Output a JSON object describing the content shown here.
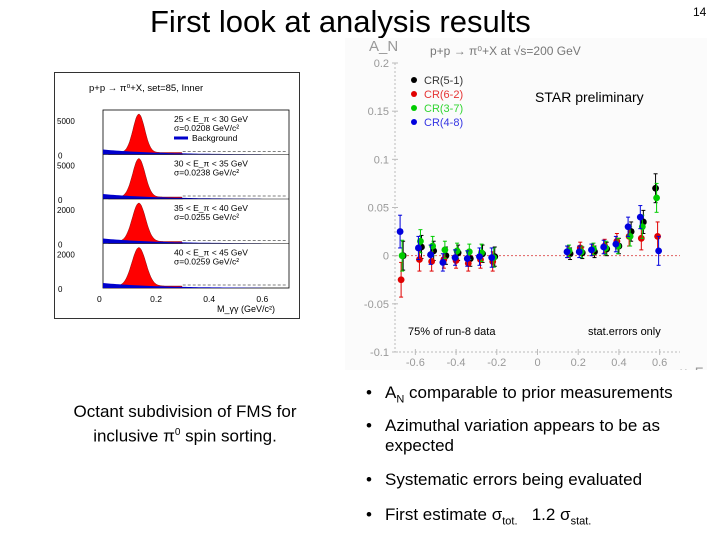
{
  "page": {
    "title": "First look at analysis results",
    "page_number": "14",
    "caption_line1": "Octant subdivision of FMS for",
    "caption_line2_pre": "inclusive ",
    "caption_pi": "π",
    "caption_pi_sup": "0",
    "caption_line2_post": " spin sorting.",
    "bullets": [
      {
        "pre": "A",
        "sub": "N",
        "post": " comparable to prior measurements"
      },
      {
        "text": "Azimuthal variation appears to be as expected"
      },
      {
        "text": "Systematic errors being evaluated"
      },
      {
        "pre": "First estimate σ",
        "sub": "tot.",
        "mid": "   1.2 σ",
        "sub2": "stat."
      }
    ]
  },
  "chart_data": [
    {
      "type": "histogram",
      "title": "p+p → π⁰+X, set=85, Inner",
      "xlabel": "M_γγ (GeV/c²)",
      "xticks": [
        "0",
        "0.2",
        "0.4",
        "0.6"
      ],
      "xlim": [
        0,
        0.7
      ],
      "legend": [
        "Background"
      ],
      "panels": [
        {
          "ytick": "5000",
          "range": "25 < E_π < 30 GeV",
          "sigma": "σ=0.0208 GeV/c²",
          "peak": 0.135
        },
        {
          "ytick": "5000",
          "range": "30 < E_π < 35 GeV",
          "sigma": "σ=0.0238 GeV/c²",
          "peak": 0.135
        },
        {
          "ytick": "2000",
          "range": "35 < E_π < 40 GeV",
          "sigma": "σ=0.0255 GeV/c²",
          "peak": 0.135
        },
        {
          "ytick": "2000",
          "range": "40 < E_π < 45 GeV",
          "sigma": "σ=0.0259 GeV/c²",
          "peak": 0.135
        }
      ],
      "zero_tick": "0",
      "colors": {
        "signal": "#ff0000",
        "background": "#0000cc"
      }
    },
    {
      "type": "scatter",
      "title": "p+p → π⁰+X at √s=200 GeV",
      "ylabel": "A_N",
      "xlabel": "x_F",
      "xlim": [
        -0.7,
        0.7
      ],
      "ylim": [
        -0.1,
        0.2
      ],
      "xticks": [
        "-0.6",
        "-0.4",
        "-0.2",
        "0",
        "0.2",
        "0.4",
        "0.6"
      ],
      "yticks": [
        "-0.1",
        "-0.05",
        "0",
        "0.05",
        "0.1",
        "0.15",
        "0.2"
      ],
      "annotations": [
        "STAR preliminary",
        "75% of run-8 data",
        "stat.errors only"
      ],
      "legend_position": "top-left",
      "zero_line": true,
      "series": [
        {
          "name": "CR(5-1)",
          "color": "#000000",
          "x": [
            -0.66,
            -0.57,
            -0.51,
            -0.45,
            -0.39,
            -0.33,
            -0.27,
            -0.21,
            0.16,
            0.22,
            0.28,
            0.34,
            0.4,
            0.46,
            0.52,
            0.58
          ],
          "y": [
            0.0,
            0.009,
            0.005,
            0.0,
            0.003,
            -0.003,
            0.002,
            -0.001,
            0.002,
            0.003,
            0.004,
            0.007,
            0.01,
            0.025,
            0.035,
            0.07
          ],
          "err": [
            0.015,
            0.012,
            0.01,
            0.009,
            0.008,
            0.008,
            0.009,
            0.01,
            0.006,
            0.006,
            0.006,
            0.007,
            0.008,
            0.01,
            0.012,
            0.015
          ]
        },
        {
          "name": "CR(6-2)",
          "color": "#e00000",
          "x": [
            -0.67,
            -0.58,
            -0.52,
            -0.46,
            -0.4,
            -0.34,
            -0.28,
            -0.22,
            0.15,
            0.21,
            0.27,
            0.33,
            0.39,
            0.45,
            0.51,
            0.59
          ],
          "y": [
            -0.025,
            -0.004,
            -0.006,
            -0.004,
            -0.005,
            -0.008,
            -0.004,
            -0.006,
            0.004,
            0.008,
            0.006,
            0.01,
            0.015,
            0.02,
            0.018,
            0.02
          ],
          "err": [
            0.018,
            0.012,
            0.01,
            0.009,
            0.008,
            0.008,
            0.009,
            0.01,
            0.006,
            0.006,
            0.006,
            0.007,
            0.008,
            0.01,
            0.012,
            0.015
          ]
        },
        {
          "name": "CR(3-7)",
          "color": "#00cc00",
          "x": [
            -0.665,
            -0.575,
            -0.515,
            -0.455,
            -0.395,
            -0.335,
            -0.275,
            -0.215,
            0.155,
            0.215,
            0.275,
            0.335,
            0.395,
            0.455,
            0.515,
            0.585
          ],
          "y": [
            0.0,
            0.015,
            0.01,
            0.006,
            0.005,
            0.004,
            0.003,
            -0.002,
            0.005,
            0.004,
            0.007,
            0.008,
            0.01,
            0.02,
            0.03,
            0.06
          ],
          "err": [
            0.016,
            0.012,
            0.01,
            0.009,
            0.008,
            0.008,
            0.009,
            0.01,
            0.006,
            0.006,
            0.006,
            0.007,
            0.008,
            0.01,
            0.012,
            0.015
          ]
        },
        {
          "name": "CR(4-8)",
          "color": "#0000dd",
          "x": [
            -0.675,
            -0.585,
            -0.525,
            -0.465,
            -0.405,
            -0.345,
            -0.285,
            -0.225,
            0.145,
            0.205,
            0.265,
            0.325,
            0.385,
            0.445,
            0.505,
            0.595
          ],
          "y": [
            0.025,
            0.008,
            0.001,
            -0.007,
            -0.002,
            -0.003,
            -0.001,
            -0.002,
            0.004,
            0.004,
            0.006,
            0.009,
            0.012,
            0.03,
            0.04,
            0.005
          ],
          "err": [
            0.017,
            0.012,
            0.01,
            0.009,
            0.008,
            0.008,
            0.009,
            0.01,
            0.006,
            0.006,
            0.006,
            0.007,
            0.008,
            0.01,
            0.012,
            0.015
          ]
        }
      ]
    }
  ]
}
